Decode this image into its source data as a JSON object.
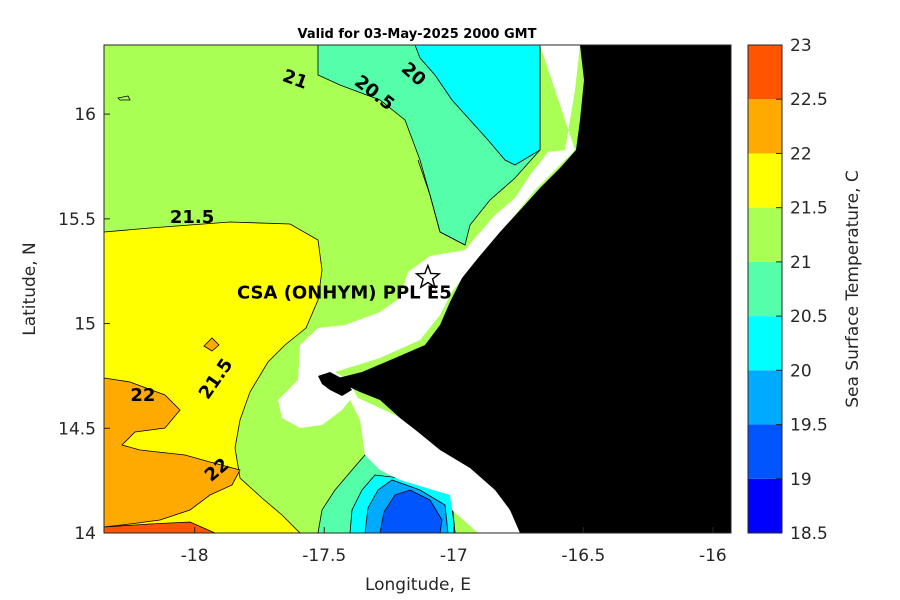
{
  "figure": {
    "title": "Valid for 03-May-2025 2000 GMT",
    "xlabel": "Longitude, E",
    "ylabel": "Latitude, N",
    "colorbar_label": "Sea Surface Temperature, C",
    "site_label": "CSA (ONHYM) PPL E5"
  },
  "map": {
    "xlim": [
      -18.35,
      -15.93
    ],
    "ylim": [
      14.0,
      16.33
    ],
    "xticks": [
      -18,
      -17.5,
      -17,
      -16.5,
      -16
    ],
    "xtick_labels": [
      "-18",
      "-17.5",
      "-17",
      "-16.5",
      "-16"
    ],
    "yticks": [
      14,
      14.5,
      15,
      15.5,
      16
    ],
    "ytick_labels": [
      "14",
      "14.5",
      "15",
      "15.5",
      "16"
    ],
    "site": {
      "lon": -17.1,
      "lat": 15.22,
      "marker": "star-icon"
    },
    "contour_labels": [
      {
        "text": "21",
        "lon": -17.62,
        "lat": 16.14,
        "rotate": 20
      },
      {
        "text": "20.5",
        "lon": -17.32,
        "lat": 16.08,
        "rotate": 38
      },
      {
        "text": "20",
        "lon": -17.17,
        "lat": 16.17,
        "rotate": 42
      },
      {
        "text": "21.5",
        "lon": -18.01,
        "lat": 15.48,
        "rotate": 0
      },
      {
        "text": "21.5",
        "lon": -17.9,
        "lat": 14.72,
        "rotate": -55
      },
      {
        "text": "22",
        "lon": -18.2,
        "lat": 14.63,
        "rotate": 0
      },
      {
        "text": "22",
        "lon": -17.9,
        "lat": 14.28,
        "rotate": -40
      }
    ],
    "colors": {
      "land": "#000000",
      "nodata": "#ffffff",
      "sst_20": "#00ffff",
      "sst_20_5": "#55ffaa",
      "sst_21": "#aaff55",
      "sst_21_5": "#ffff00",
      "sst_22": "#ffaa00",
      "sst_19_5": "#00aaff",
      "sst_19": "#0055ff"
    }
  },
  "colorbar": {
    "levels": [
      18.5,
      19,
      19.5,
      20,
      20.5,
      21,
      21.5,
      22,
      22.5,
      23
    ],
    "tick_labels": [
      "18.5",
      "19",
      "19.5",
      "20",
      "20.5",
      "21",
      "21.5",
      "22",
      "22.5",
      "23"
    ],
    "colors": [
      "#0000ff",
      "#0055ff",
      "#00aaff",
      "#00ffff",
      "#55ffaa",
      "#aaff55",
      "#ffff00",
      "#ffaa00",
      "#ff5500"
    ]
  }
}
